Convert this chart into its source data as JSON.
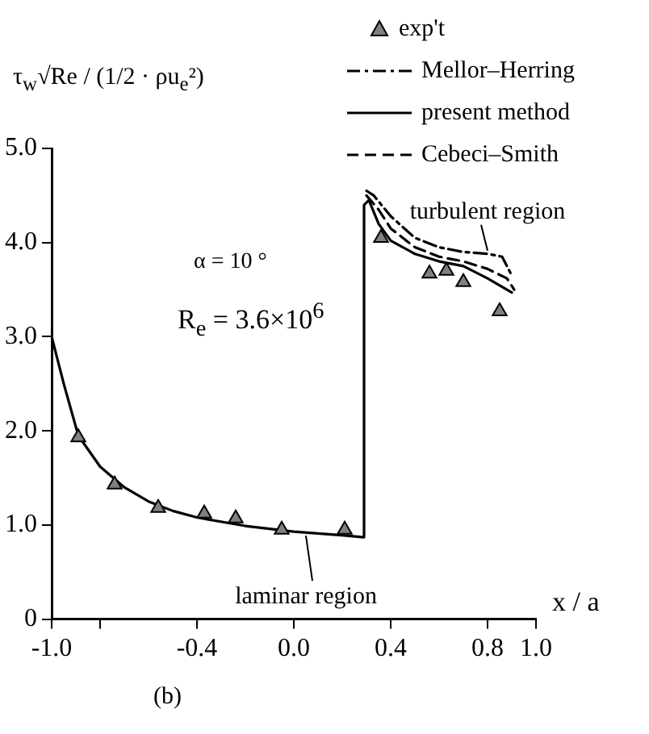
{
  "chart_data": {
    "type": "line",
    "ylabel": "τ$_{w}$√Re / (1/2 · ρu$_{e}$²)",
    "xlabel": "x / a",
    "xlim": [
      -1.0,
      1.0
    ],
    "xticks": [
      {
        "value": -1.0,
        "label": "-1.0"
      },
      {
        "value": -0.8,
        "label": null
      },
      {
        "value": -0.4,
        "label": "-0.4"
      },
      {
        "value": 0,
        "label": "0.0"
      },
      {
        "value": 0.4,
        "label": "0.4"
      },
      {
        "value": 0.8,
        "label": "0.8"
      },
      {
        "value": 1.0,
        "label": "1.0"
      }
    ],
    "ylim": [
      0,
      5.0
    ],
    "yticks": [
      0,
      {
        "value": 1,
        "label": "1.0"
      },
      {
        "value": 2,
        "label": "2.0"
      },
      {
        "value": 3,
        "label": "3.0"
      },
      {
        "value": 4,
        "label": "4.0"
      },
      {
        "value": 5,
        "label": "5.0"
      }
    ],
    "grid": false,
    "legend": "top right",
    "annotations": [
      "α = 10 °",
      "R$_{e}$ = 3.6×10$^{6}$",
      {
        "text": "turbulent region",
        "x": 0.8,
        "y": 3.88
      },
      {
        "text": "laminar region",
        "x": 0.05,
        "y": 0.92
      },
      "(b)"
    ],
    "series": [
      {
        "name": "exp't",
        "type": "scatter",
        "marker": "triangle",
        "color": "#808080",
        "x": [
          -0.89,
          -0.74,
          -0.56,
          -0.37,
          -0.24,
          -0.05,
          0.21,
          0.36,
          0.56,
          0.63,
          0.7,
          0.85
        ],
        "values": [
          1.93,
          1.43,
          1.18,
          1.12,
          1.07,
          0.95,
          0.95,
          4.05,
          3.67,
          3.7,
          3.58,
          3.27
        ]
      },
      {
        "name": "Mellor–Herring",
        "type": "line",
        "line_style": "dashdot",
        "color": "#000000",
        "x": [
          0.3,
          0.33,
          0.4,
          0.5,
          0.6,
          0.7,
          0.8,
          0.86,
          0.9
        ],
        "values": [
          4.55,
          4.5,
          4.28,
          4.05,
          3.95,
          3.9,
          3.88,
          3.85,
          3.65
        ]
      },
      {
        "name": "present method",
        "type": "line",
        "line_style": "solid",
        "color": "#000000",
        "x": [
          -1,
          -0.95,
          -0.89,
          -0.8,
          -0.7,
          -0.6,
          -0.5,
          -0.4,
          -0.2,
          0,
          0.2,
          0.29,
          0.29,
          0.31,
          0.35,
          0.4,
          0.5,
          0.6,
          0.7,
          0.8,
          0.88,
          0.9
        ],
        "values": [
          3.0,
          2.5,
          1.95,
          1.62,
          1.4,
          1.25,
          1.15,
          1.08,
          0.99,
          0.93,
          0.89,
          0.87,
          4.4,
          4.45,
          4.2,
          4.02,
          3.88,
          3.8,
          3.75,
          3.62,
          3.5,
          3.47
        ]
      },
      {
        "name": "Cebeci–Smith",
        "type": "line",
        "line_style": "dashed",
        "color": "#000000",
        "x": [
          0.3,
          0.35,
          0.4,
          0.5,
          0.6,
          0.7,
          0.8,
          0.88,
          0.91
        ],
        "values": [
          4.5,
          4.35,
          4.15,
          3.95,
          3.85,
          3.8,
          3.72,
          3.62,
          3.5
        ]
      }
    ]
  }
}
